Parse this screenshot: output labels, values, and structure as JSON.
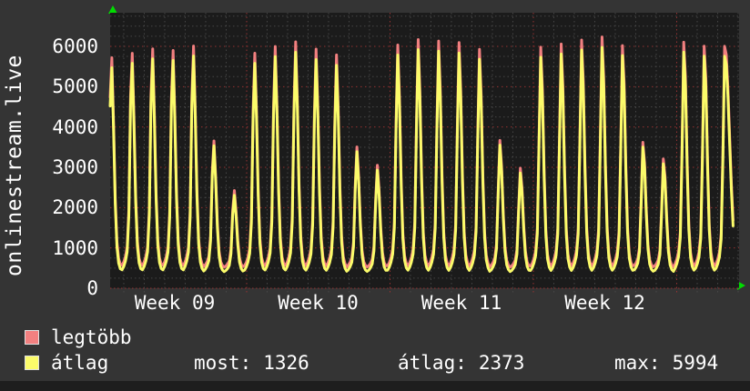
{
  "title_vertical": "onlinestream.live",
  "colors": {
    "background": "#343434",
    "plot_background": "#1b1b1b",
    "major_grid": "#963232",
    "minor_grid": "#4a4a4a",
    "axis_arrow": "#00dd00",
    "text": "#ffffff",
    "series_max": "#f28080",
    "series_avg": "#fbfb6a"
  },
  "legend": {
    "items": [
      {
        "label": "legtöbb",
        "color": "#f28080"
      },
      {
        "label": "átlag",
        "color": "#fbfb6a"
      }
    ]
  },
  "stats": [
    {
      "label": "most:",
      "value": "1326"
    },
    {
      "label": "átlag:",
      "value": "2373"
    },
    {
      "label": "max:",
      "value": "5994"
    }
  ],
  "chart_data": {
    "type": "line",
    "title": "onlinestream.live",
    "ylabel": "onlinestream.live",
    "xlabel": "",
    "ylim": [
      0,
      6830
    ],
    "grid": true,
    "y_ticks": [
      0,
      1000,
      2000,
      3000,
      4000,
      5000,
      6000
    ],
    "y_minor_step": 250,
    "x_tick_labels": [
      "Week 09",
      "Week 10",
      "Week 11",
      "Week 12"
    ],
    "x_axis": {
      "unit": "day",
      "days_visible": 31,
      "minor_grid": "1 day",
      "major_grid": "1 week"
    },
    "legend_position": "bottom-left",
    "series": [
      {
        "name": "legtöbb",
        "role": "daily maximum",
        "color": "#f28080",
        "daily_min": 500,
        "peaks": [
          5850,
          5950,
          6050,
          6000,
          6100,
          3700,
          2450,
          5890,
          6050,
          6160,
          5970,
          5820,
          3520,
          3060,
          6050,
          6180,
          6140,
          6100,
          5930,
          3670,
          2980,
          5980,
          6060,
          6160,
          6240,
          6030,
          3630,
          3220,
          6140,
          6050,
          6060
        ]
      },
      {
        "name": "átlag",
        "role": "daily average",
        "color": "#fbfb6a",
        "daily_min": 390,
        "peaks": [
          5600,
          5700,
          5800,
          5750,
          5850,
          3580,
          2330,
          5640,
          5800,
          5900,
          5710,
          5560,
          3400,
          2940,
          5800,
          5930,
          5890,
          5840,
          5680,
          3550,
          2860,
          5730,
          5810,
          5910,
          5980,
          5780,
          3510,
          3100,
          5890,
          5800,
          5810
        ]
      }
    ],
    "stats": {
      "most": 1326,
      "atlag": 2373,
      "max": 5994
    }
  }
}
